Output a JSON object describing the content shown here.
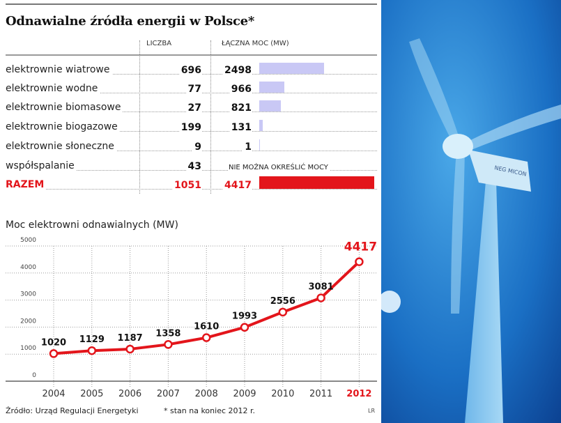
{
  "title": "Odnawialne źródła energii w Polsce*",
  "table": {
    "headers": {
      "count": "LICZBA",
      "power": "ŁĄCZNA MOC (MW)"
    },
    "rows": [
      {
        "label": "elektrownie wiatrowe",
        "count": "696",
        "power": "2498",
        "power_value": 2498
      },
      {
        "label": "elektrownie wodne",
        "count": "77",
        "power": "966",
        "power_value": 966
      },
      {
        "label": "elektrownie biomasowe",
        "count": "27",
        "power": "821",
        "power_value": 821
      },
      {
        "label": "elektrownie biogazowe",
        "count": "199",
        "power": "131",
        "power_value": 131
      },
      {
        "label": "elektrownie słoneczne",
        "count": "9",
        "power": "1",
        "power_value": 1
      },
      {
        "label": "współspalanie",
        "count": "43",
        "power_note": "NIE MOŻNA OKREŚLIĆ MOCY"
      }
    ],
    "total": {
      "label": "RAZEM",
      "count": "1051",
      "power": "4417",
      "power_value": 4417
    },
    "bar_color": "#c9c8f5",
    "total_color": "#e3151b"
  },
  "chart_data": {
    "type": "line",
    "title": "Moc elektrowni odnawialnych (MW)",
    "categories": [
      "2004",
      "2005",
      "2006",
      "2007",
      "2008",
      "2009",
      "2010",
      "2011",
      "2012"
    ],
    "values": [
      1020,
      1129,
      1187,
      1358,
      1610,
      1993,
      2556,
      3081,
      4417
    ],
    "ylim": [
      0,
      5000
    ],
    "yticks": [
      "0",
      "1000",
      "2000",
      "3000",
      "4000",
      "5000"
    ],
    "grid": true,
    "line_color": "#e3151b",
    "highlight": "2012"
  },
  "footer": {
    "source": "Źródło: Urząd Regulacji Energetyki",
    "note": "* stan na koniec 2012 r.",
    "credit": "LR"
  },
  "photo": {
    "logo_text": "NEG MICON"
  }
}
